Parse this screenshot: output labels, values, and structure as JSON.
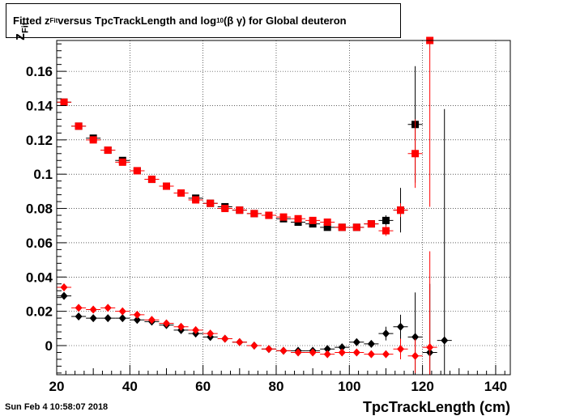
{
  "title": {
    "prefix": "Fitted  z",
    "sub1": "Fit",
    "middle": "  versus TpcTrackLength and log",
    "sub2": "10",
    "suffix": " (β γ) for Global deuteron"
  },
  "timestamp": "Sun Feb  4 10:58:07 2018",
  "chart_data": {
    "type": "scatter",
    "title": "Fitted z_Fit versus TpcTrackLength and log10 (β γ) for Global deuteron",
    "xlabel": "TpcTrackLength (cm)",
    "ylabel": "z_Fit",
    "xlim": [
      20,
      144
    ],
    "ylim": [
      -0.017,
      0.178
    ],
    "x_ticks": [
      "20",
      "40",
      "60",
      "80",
      "100",
      "120",
      "140"
    ],
    "y_ticks": [
      "0",
      "0.02",
      "0.04",
      "0.06",
      "0.08",
      "0.1",
      "0.12",
      "0.14",
      "0.16"
    ],
    "grid": true,
    "series": [
      {
        "color": "#000000",
        "marker": "square",
        "points": [
          [
            22,
            0.142
          ],
          [
            26,
            0.128
          ],
          [
            30,
            0.121
          ],
          [
            34,
            0.114
          ],
          [
            38,
            0.108
          ],
          [
            42,
            0.102
          ],
          [
            46,
            0.097
          ],
          [
            50,
            0.093
          ],
          [
            54,
            0.089
          ],
          [
            58,
            0.086
          ],
          [
            62,
            0.083
          ],
          [
            66,
            0.081
          ],
          [
            70,
            0.079
          ],
          [
            74,
            0.077
          ],
          [
            78,
            0.076
          ],
          [
            82,
            0.074
          ],
          [
            86,
            0.072
          ],
          [
            90,
            0.071
          ],
          [
            94,
            0.069
          ],
          [
            98,
            0.069
          ],
          [
            102,
            0.069
          ],
          [
            106,
            0.071
          ],
          [
            110,
            0.073
          ],
          [
            114,
            0.079
          ],
          [
            118,
            0.129
          ]
        ],
        "errors": [
          [
            22,
            0.001
          ],
          [
            26,
            0.001
          ],
          [
            30,
            0.001
          ],
          [
            34,
            0.001
          ],
          [
            38,
            0.001
          ],
          [
            42,
            0.001
          ],
          [
            46,
            0.001
          ],
          [
            50,
            0.001
          ],
          [
            54,
            0.001
          ],
          [
            58,
            0.001
          ],
          [
            62,
            0.001
          ],
          [
            66,
            0.001
          ],
          [
            70,
            0.001
          ],
          [
            74,
            0.001
          ],
          [
            78,
            0.001
          ],
          [
            82,
            0.001
          ],
          [
            86,
            0.001
          ],
          [
            90,
            0.001
          ],
          [
            94,
            0.001
          ],
          [
            98,
            0.001
          ],
          [
            102,
            0.001
          ],
          [
            106,
            0.002
          ],
          [
            110,
            0.003
          ],
          [
            114,
            0.013
          ],
          [
            118,
            0.034
          ]
        ]
      },
      {
        "color": "#ff0000",
        "marker": "square",
        "points": [
          [
            22,
            0.142
          ],
          [
            26,
            0.128
          ],
          [
            30,
            0.12
          ],
          [
            34,
            0.114
          ],
          [
            38,
            0.107
          ],
          [
            42,
            0.102
          ],
          [
            46,
            0.097
          ],
          [
            50,
            0.093
          ],
          [
            54,
            0.089
          ],
          [
            58,
            0.085
          ],
          [
            62,
            0.083
          ],
          [
            66,
            0.08
          ],
          [
            70,
            0.079
          ],
          [
            74,
            0.077
          ],
          [
            78,
            0.076
          ],
          [
            82,
            0.075
          ],
          [
            86,
            0.074
          ],
          [
            90,
            0.073
          ],
          [
            94,
            0.072
          ],
          [
            98,
            0.069
          ],
          [
            102,
            0.069
          ],
          [
            106,
            0.071
          ],
          [
            110,
            0.067
          ],
          [
            114,
            0.079
          ],
          [
            118,
            0.112
          ],
          [
            122,
            0.178
          ]
        ],
        "errors": [
          [
            22,
            0.001
          ],
          [
            26,
            0.001
          ],
          [
            30,
            0.001
          ],
          [
            34,
            0.001
          ],
          [
            38,
            0.001
          ],
          [
            42,
            0.001
          ],
          [
            46,
            0.001
          ],
          [
            50,
            0.001
          ],
          [
            54,
            0.001
          ],
          [
            58,
            0.001
          ],
          [
            62,
            0.001
          ],
          [
            66,
            0.001
          ],
          [
            70,
            0.001
          ],
          [
            74,
            0.001
          ],
          [
            78,
            0.001
          ],
          [
            82,
            0.001
          ],
          [
            86,
            0.001
          ],
          [
            90,
            0.001
          ],
          [
            94,
            0.001
          ],
          [
            98,
            0.001
          ],
          [
            102,
            0.001
          ],
          [
            106,
            0.002
          ],
          [
            110,
            0.003
          ],
          [
            114,
            0.004
          ],
          [
            118,
            0.02
          ],
          [
            122,
            0.097
          ]
        ]
      },
      {
        "color": "#000000",
        "marker": "diamond",
        "points": [
          [
            22,
            0.029
          ],
          [
            26,
            0.017
          ],
          [
            30,
            0.016
          ],
          [
            34,
            0.016
          ],
          [
            38,
            0.016
          ],
          [
            42,
            0.015
          ],
          [
            46,
            0.014
          ],
          [
            50,
            0.012
          ],
          [
            54,
            0.009
          ],
          [
            58,
            0.007
          ],
          [
            62,
            0.005
          ],
          [
            66,
            0.004
          ],
          [
            70,
            0.002
          ],
          [
            74,
            0.0
          ],
          [
            78,
            -0.002
          ],
          [
            82,
            -0.003
          ],
          [
            86,
            -0.003
          ],
          [
            90,
            -0.003
          ],
          [
            94,
            -0.002
          ],
          [
            98,
            -0.001
          ],
          [
            102,
            0.002
          ],
          [
            106,
            0.001
          ],
          [
            110,
            0.007
          ],
          [
            114,
            0.011
          ],
          [
            118,
            0.005
          ],
          [
            122,
            -0.004
          ],
          [
            126,
            0.003
          ]
        ],
        "errors": [
          [
            22,
            0.001
          ],
          [
            26,
            0.001
          ],
          [
            30,
            0.001
          ],
          [
            34,
            0.001
          ],
          [
            38,
            0.001
          ],
          [
            42,
            0.001
          ],
          [
            46,
            0.001
          ],
          [
            50,
            0.001
          ],
          [
            54,
            0.001
          ],
          [
            58,
            0.001
          ],
          [
            62,
            0.001
          ],
          [
            66,
            0.001
          ],
          [
            70,
            0.001
          ],
          [
            74,
            0.001
          ],
          [
            78,
            0.001
          ],
          [
            82,
            0.001
          ],
          [
            86,
            0.001
          ],
          [
            90,
            0.001
          ],
          [
            94,
            0.001
          ],
          [
            98,
            0.002
          ],
          [
            102,
            0.002
          ],
          [
            106,
            0.002
          ],
          [
            110,
            0.004
          ],
          [
            114,
            0.007
          ],
          [
            118,
            0.026
          ],
          [
            122,
            0.04
          ],
          [
            126,
            0.135
          ]
        ]
      },
      {
        "color": "#ff0000",
        "marker": "diamond",
        "points": [
          [
            22,
            0.034
          ],
          [
            26,
            0.022
          ],
          [
            30,
            0.021
          ],
          [
            34,
            0.022
          ],
          [
            38,
            0.02
          ],
          [
            42,
            0.018
          ],
          [
            46,
            0.015
          ],
          [
            50,
            0.013
          ],
          [
            54,
            0.011
          ],
          [
            58,
            0.009
          ],
          [
            62,
            0.007
          ],
          [
            66,
            0.004
          ],
          [
            70,
            0.002
          ],
          [
            74,
            0.0
          ],
          [
            78,
            -0.002
          ],
          [
            82,
            -0.003
          ],
          [
            86,
            -0.004
          ],
          [
            90,
            -0.004
          ],
          [
            94,
            -0.005
          ],
          [
            98,
            -0.004
          ],
          [
            102,
            -0.004
          ],
          [
            106,
            -0.005
          ],
          [
            110,
            -0.005
          ],
          [
            114,
            -0.002
          ],
          [
            118,
            -0.006
          ],
          [
            122,
            -0.001
          ]
        ],
        "errors": [
          [
            22,
            0.001
          ],
          [
            26,
            0.001
          ],
          [
            30,
            0.001
          ],
          [
            34,
            0.001
          ],
          [
            38,
            0.001
          ],
          [
            42,
            0.001
          ],
          [
            46,
            0.001
          ],
          [
            50,
            0.001
          ],
          [
            54,
            0.001
          ],
          [
            58,
            0.001
          ],
          [
            62,
            0.001
          ],
          [
            66,
            0.001
          ],
          [
            70,
            0.001
          ],
          [
            74,
            0.001
          ],
          [
            78,
            0.001
          ],
          [
            82,
            0.001
          ],
          [
            86,
            0.001
          ],
          [
            90,
            0.001
          ],
          [
            94,
            0.001
          ],
          [
            98,
            0.001
          ],
          [
            102,
            0.001
          ],
          [
            106,
            0.001
          ],
          [
            110,
            0.002
          ],
          [
            114,
            0.006
          ],
          [
            118,
            0.01
          ],
          [
            122,
            0.056
          ]
        ]
      }
    ]
  }
}
